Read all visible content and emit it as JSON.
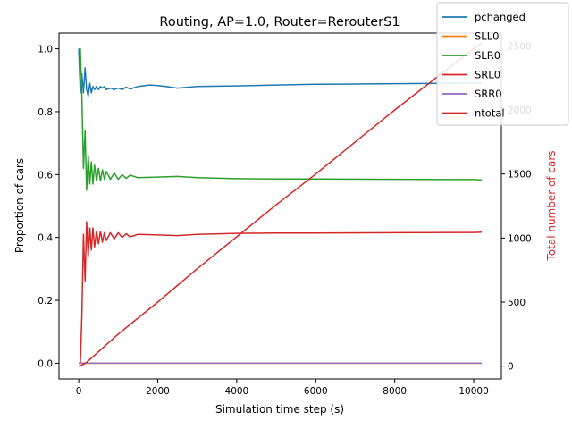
{
  "chart_data": {
    "type": "line",
    "title": "Routing, AP=1.0, Router=RerouterS1",
    "xlabel": "Simulation time step (s)",
    "ylabel_left": "Proportion of cars",
    "ylabel_right": "Total number of cars",
    "xlim": [
      -500,
      10700
    ],
    "ylim_left": [
      -0.05,
      1.05
    ],
    "ylim_right": [
      -100,
      2600
    ],
    "xticks": [
      "0",
      "2000",
      "4000",
      "6000",
      "8000",
      "10000"
    ],
    "yticks_left": [
      "0.0",
      "0.2",
      "0.4",
      "0.6",
      "0.8",
      "1.0"
    ],
    "yticks_right": [
      "0",
      "500",
      "1000",
      "1500",
      "2000",
      "2500"
    ],
    "grid": false,
    "legend_position": "top-right",
    "series": [
      {
        "name": "pchanged",
        "axis": "left",
        "color": "#1f77b4",
        "x": [
          0,
          40,
          80,
          120,
          160,
          200,
          240,
          280,
          320,
          360,
          400,
          450,
          500,
          550,
          600,
          650,
          700,
          800,
          900,
          1000,
          1100,
          1200,
          1300,
          1500,
          1800,
          2000,
          2200,
          2500,
          3000,
          4000,
          5000,
          6000,
          8000,
          10000,
          10200
        ],
        "y": [
          1.0,
          0.86,
          0.92,
          0.86,
          0.94,
          0.87,
          0.85,
          0.89,
          0.86,
          0.88,
          0.87,
          0.88,
          0.87,
          0.88,
          0.875,
          0.88,
          0.87,
          0.875,
          0.87,
          0.875,
          0.87,
          0.878,
          0.872,
          0.88,
          0.885,
          0.883,
          0.88,
          0.875,
          0.88,
          0.882,
          0.885,
          0.887,
          0.889,
          0.891,
          0.892
        ]
      },
      {
        "name": "SLL0",
        "axis": "left",
        "color": "#ff7f0e",
        "x": [
          0,
          10200
        ],
        "y": [
          0.0,
          0.0
        ]
      },
      {
        "name": "SLR0",
        "axis": "left",
        "color": "#2ca02c",
        "x": [
          0,
          40,
          80,
          120,
          160,
          200,
          240,
          280,
          320,
          360,
          400,
          450,
          500,
          550,
          600,
          650,
          700,
          800,
          900,
          1000,
          1100,
          1200,
          1300,
          1500,
          2000,
          2500,
          3000,
          4000,
          5000,
          6000,
          8000,
          10000,
          10200
        ],
        "y": [
          1.0,
          1.0,
          0.85,
          0.62,
          0.74,
          0.55,
          0.66,
          0.57,
          0.64,
          0.57,
          0.63,
          0.58,
          0.62,
          0.58,
          0.615,
          0.585,
          0.61,
          0.585,
          0.605,
          0.585,
          0.6,
          0.588,
          0.598,
          0.59,
          0.592,
          0.594,
          0.59,
          0.587,
          0.586,
          0.586,
          0.585,
          0.584,
          0.583
        ]
      },
      {
        "name": "SRL0",
        "axis": "left",
        "color": "#d62728",
        "x": [
          0,
          40,
          80,
          120,
          160,
          200,
          240,
          280,
          320,
          360,
          400,
          450,
          500,
          550,
          600,
          650,
          700,
          800,
          900,
          1000,
          1100,
          1200,
          1300,
          1500,
          2000,
          2500,
          3000,
          4000,
          5000,
          6000,
          8000,
          10000,
          10200
        ],
        "y": [
          0.0,
          0.0,
          0.15,
          0.41,
          0.26,
          0.45,
          0.34,
          0.43,
          0.36,
          0.43,
          0.37,
          0.42,
          0.38,
          0.42,
          0.385,
          0.415,
          0.39,
          0.415,
          0.395,
          0.415,
          0.4,
          0.412,
          0.402,
          0.41,
          0.408,
          0.406,
          0.41,
          0.413,
          0.414,
          0.414,
          0.415,
          0.416,
          0.417
        ]
      },
      {
        "name": "SRR0",
        "axis": "left",
        "color": "#9467bd",
        "x": [
          0,
          10200
        ],
        "y": [
          0.0,
          0.0
        ]
      },
      {
        "name": "ntotal",
        "axis": "right",
        "color": "#d62728",
        "x": [
          0,
          100,
          200,
          1000,
          2000,
          3000,
          4000,
          5000,
          6000,
          7000,
          8000,
          9000,
          10000,
          10200
        ],
        "y": [
          0,
          10,
          30,
          250,
          500,
          760,
          1010,
          1260,
          1500,
          1750,
          2000,
          2240,
          2480,
          2520
        ]
      }
    ]
  }
}
